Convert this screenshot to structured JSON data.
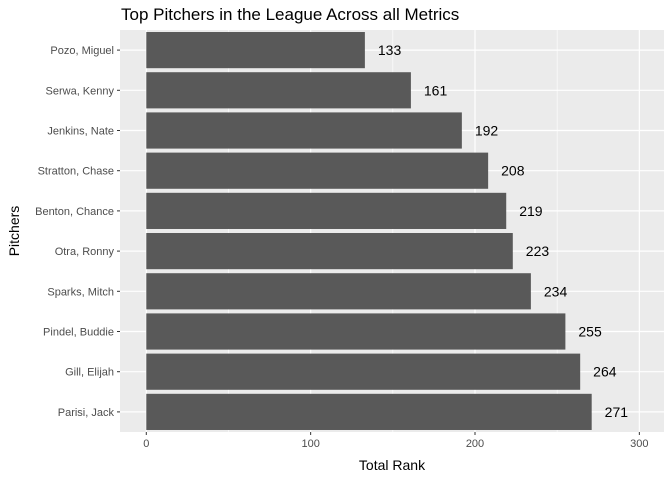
{
  "chart_data": {
    "type": "bar",
    "orientation": "horizontal",
    "title": "Top Pitchers in the League Across all Metrics",
    "xlabel": "Total Rank",
    "ylabel": "Pitchers",
    "categories": [
      "Pozo, Miguel",
      "Serwa, Kenny",
      "Jenkins, Nate",
      "Stratton, Chase",
      "Benton, Chance",
      "Otra, Ronny",
      "Sparks, Mitch",
      "Pindel, Buddie",
      "Gill, Elijah",
      "Parisi, Jack"
    ],
    "values": [
      133,
      161,
      192,
      208,
      219,
      223,
      234,
      255,
      264,
      271
    ],
    "xlim": [
      -16,
      315
    ],
    "xticks": [
      0,
      100,
      200,
      300
    ],
    "grid": true,
    "bar_color": "#595959",
    "panel_color": "#ebebeb",
    "grid_color": "#ffffff"
  }
}
